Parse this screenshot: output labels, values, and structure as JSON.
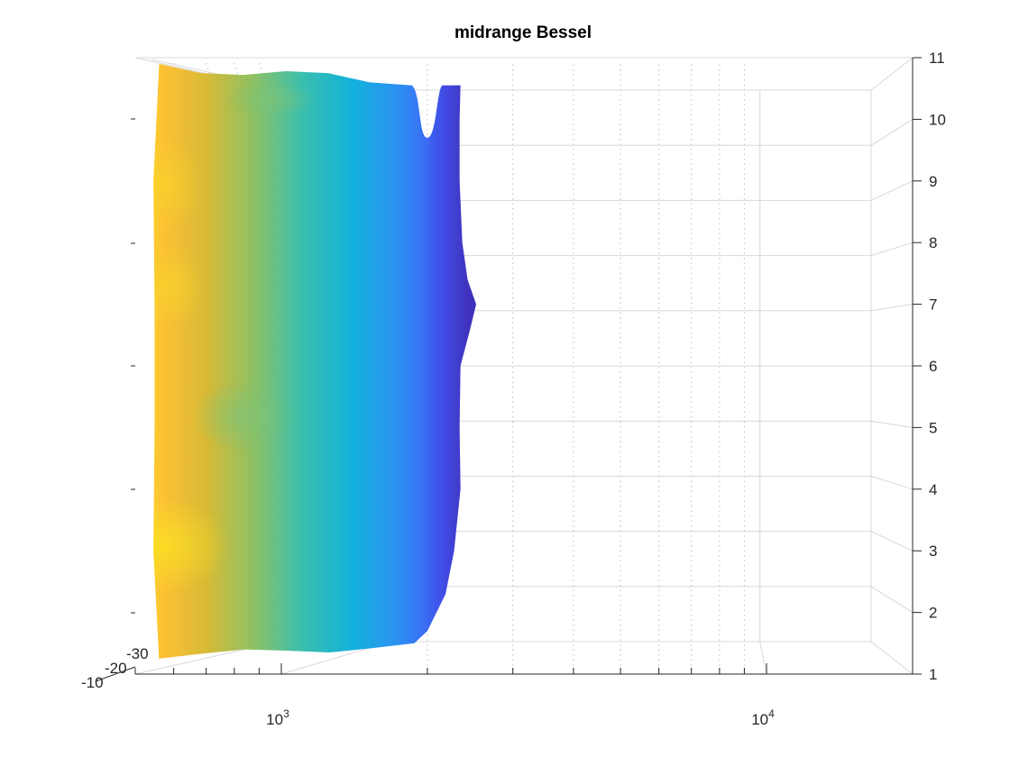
{
  "chart_data": {
    "type": "surface",
    "title": "midrange Bessel",
    "xlabel": "",
    "ylabel": "",
    "zlabel": "",
    "x_scale": "log",
    "xlim": [
      500,
      20000
    ],
    "x_ticks": [
      {
        "value": 1000,
        "base": "10",
        "exp": "3"
      },
      {
        "value": 10000,
        "base": "10",
        "exp": "4"
      }
    ],
    "ylim": [
      1,
      11
    ],
    "y_ticks": [
      1,
      2,
      3,
      4,
      5,
      6,
      7,
      8,
      9,
      10,
      11
    ],
    "zlim": [
      -30,
      -10
    ],
    "z_ticks": [
      -10,
      -20,
      -30
    ],
    "grid": true,
    "colormap": [
      "#3e26a8",
      "#4254f5",
      "#2b94f2",
      "#12b2da",
      "#3bbfad",
      "#8cc165",
      "#d6ba36",
      "#fdbf35",
      "#f9e021"
    ],
    "surface": {
      "left_edge": [
        {
          "y": 1.2,
          "x": 560
        },
        {
          "y": 3,
          "x": 545
        },
        {
          "y": 5,
          "x": 548
        },
        {
          "y": 7,
          "x": 548
        },
        {
          "y": 9,
          "x": 545
        },
        {
          "y": 10.9,
          "x": 560
        }
      ],
      "right_edge": [
        {
          "y": 1.5,
          "x": 1880
        },
        {
          "y": 1.7,
          "x": 2000
        },
        {
          "y": 2.3,
          "x": 2180
        },
        {
          "y": 3,
          "x": 2270
        },
        {
          "y": 4,
          "x": 2340
        },
        {
          "y": 5,
          "x": 2330
        },
        {
          "y": 6,
          "x": 2340
        },
        {
          "y": 6.6,
          "x": 2450
        },
        {
          "y": 7,
          "x": 2520
        },
        {
          "y": 7.4,
          "x": 2420
        },
        {
          "y": 8,
          "x": 2360
        },
        {
          "y": 9,
          "x": 2330
        },
        {
          "y": 10,
          "x": 2330
        },
        {
          "y": 10.55,
          "x": 2340
        }
      ],
      "notch": {
        "x_left": 1860,
        "x_bottom": 2000,
        "x_right": 2150,
        "y_top": 10.55,
        "y_bottom": 9.7
      },
      "top_edge_y": [
        10.9,
        10.75,
        10.72,
        10.78,
        10.75,
        10.6,
        10.55
      ],
      "bottom_edge_y": [
        1.25,
        1.33,
        1.4,
        1.38,
        1.35,
        1.42,
        1.5
      ]
    }
  }
}
